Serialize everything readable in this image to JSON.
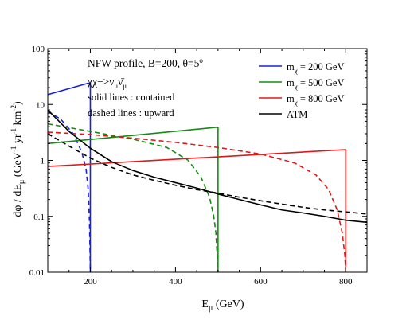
{
  "chart_data": {
    "type": "line",
    "xlabel": "E_μ (GeV)",
    "ylabel": "dφ / dE_μ (GeV⁻¹ yr⁻¹ km⁻²)",
    "xlim": [
      100,
      850
    ],
    "ylim": [
      0.01,
      100
    ],
    "yscale": "log",
    "x_ticks": [
      200,
      400,
      600,
      800
    ],
    "y_ticks": [
      0.01,
      0.1,
      1,
      10,
      100
    ],
    "x_tick_labels": [
      "200",
      "400",
      "600",
      "800"
    ],
    "y_tick_labels": [
      "0.01",
      "0.1",
      "1",
      "10",
      "100"
    ],
    "grid": false,
    "legend_placement": "top-right",
    "annotations": [
      "NFW profile, B=200, θ=5°",
      "χχ−>ν_μ ν̄_μ",
      "solid lines : contained",
      "dashed lines : upward"
    ],
    "colors": {
      "m200": "#1a22d6",
      "m500": "#148c14",
      "m800": "#e01818",
      "atm": "#000000"
    },
    "series": [
      {
        "name": "m_χ = 200 GeV",
        "legend_key": "m200",
        "style": "solid",
        "x": [
          100,
          195,
          195,
          200,
          200
        ],
        "y": [
          15,
          24,
          24,
          24,
          0.01
        ]
      },
      {
        "legend_key": "m200",
        "style": "dashed",
        "x": [
          100,
          130,
          160,
          180,
          190,
          195,
          198,
          200
        ],
        "y": [
          7.5,
          5.5,
          3.0,
          1.4,
          0.7,
          0.3,
          0.08,
          0.01
        ]
      },
      {
        "name": "m_χ = 500 GeV",
        "legend_key": "m500",
        "style": "solid",
        "x": [
          100,
          495,
          495,
          500,
          500
        ],
        "y": [
          2.0,
          3.9,
          3.9,
          3.9,
          0.01
        ]
      },
      {
        "legend_key": "m500",
        "style": "dashed",
        "x": [
          100,
          200,
          300,
          380,
          430,
          460,
          480,
          490,
          495,
          498,
          500
        ],
        "y": [
          4.5,
          3.3,
          2.4,
          1.7,
          1.0,
          0.5,
          0.22,
          0.1,
          0.05,
          0.02,
          0.01
        ]
      },
      {
        "name": "m_χ = 800 GeV",
        "legend_key": "m800",
        "style": "solid",
        "x": [
          100,
          795,
          795,
          800,
          800
        ],
        "y": [
          0.78,
          1.55,
          1.55,
          1.55,
          0.01
        ]
      },
      {
        "legend_key": "m800",
        "style": "dashed",
        "x": [
          100,
          200,
          300,
          400,
          500,
          600,
          680,
          730,
          760,
          780,
          792,
          798,
          800
        ],
        "y": [
          3.2,
          2.9,
          2.5,
          2.1,
          1.7,
          1.3,
          0.9,
          0.55,
          0.3,
          0.13,
          0.05,
          0.02,
          0.01
        ]
      },
      {
        "name": "ATM",
        "legend_key": "atm",
        "style": "solid",
        "x": [
          100,
          150,
          200,
          250,
          300,
          350,
          400,
          450,
          500,
          550,
          600,
          650,
          700,
          750,
          800,
          850
        ],
        "y": [
          8.0,
          3.3,
          1.65,
          0.95,
          0.66,
          0.5,
          0.4,
          0.32,
          0.25,
          0.2,
          0.16,
          0.13,
          0.115,
          0.1,
          0.085,
          0.078
        ]
      },
      {
        "legend_key": "atm",
        "style": "dashed",
        "x": [
          100,
          150,
          200,
          250,
          300,
          350,
          400,
          450,
          500,
          550,
          600,
          650,
          700,
          750,
          800,
          850
        ],
        "y": [
          3.0,
          1.8,
          1.1,
          0.75,
          0.55,
          0.44,
          0.36,
          0.3,
          0.26,
          0.22,
          0.19,
          0.165,
          0.145,
          0.13,
          0.12,
          0.11
        ]
      }
    ]
  }
}
